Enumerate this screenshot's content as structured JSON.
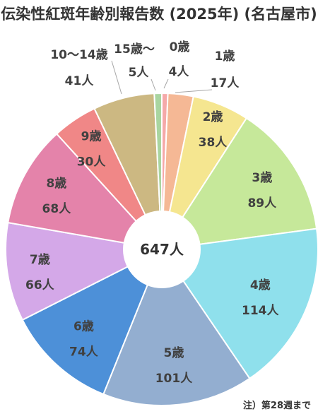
{
  "chart_data": {
    "type": "pie",
    "title": "伝染性紅斑年齢別報告数 (2025年) (名古屋市)",
    "total_label": "647人",
    "note": "注）第28週まで",
    "unit": "人",
    "slices": [
      {
        "category": "0歳",
        "value": 4,
        "value_label": "4人",
        "color": "#f5a9a9"
      },
      {
        "category": "1歳",
        "value": 17,
        "value_label": "17人",
        "color": "#f5b895"
      },
      {
        "category": "2歳",
        "value": 38,
        "value_label": "38人",
        "color": "#f5e690"
      },
      {
        "category": "3歳",
        "value": 89,
        "value_label": "89人",
        "color": "#c6e89a"
      },
      {
        "category": "4歳",
        "value": 114,
        "value_label": "114人",
        "color": "#8fe0ec"
      },
      {
        "category": "5歳",
        "value": 101,
        "value_label": "101人",
        "color": "#93aed0"
      },
      {
        "category": "6歳",
        "value": 74,
        "value_label": "74人",
        "color": "#4d90d8"
      },
      {
        "category": "7歳",
        "value": 66,
        "value_label": "66人",
        "color": "#d4a8e8"
      },
      {
        "category": "8歳",
        "value": 68,
        "value_label": "68人",
        "color": "#e483aa"
      },
      {
        "category": "9歳",
        "value": 30,
        "value_label": "30人",
        "color": "#f08787"
      },
      {
        "category": "10〜14歳",
        "value": 41,
        "value_label": "41人",
        "color": "#ccb882"
      },
      {
        "category": "15歳〜",
        "value": 5,
        "value_label": "5人",
        "color": "#a9d5a0"
      }
    ]
  }
}
